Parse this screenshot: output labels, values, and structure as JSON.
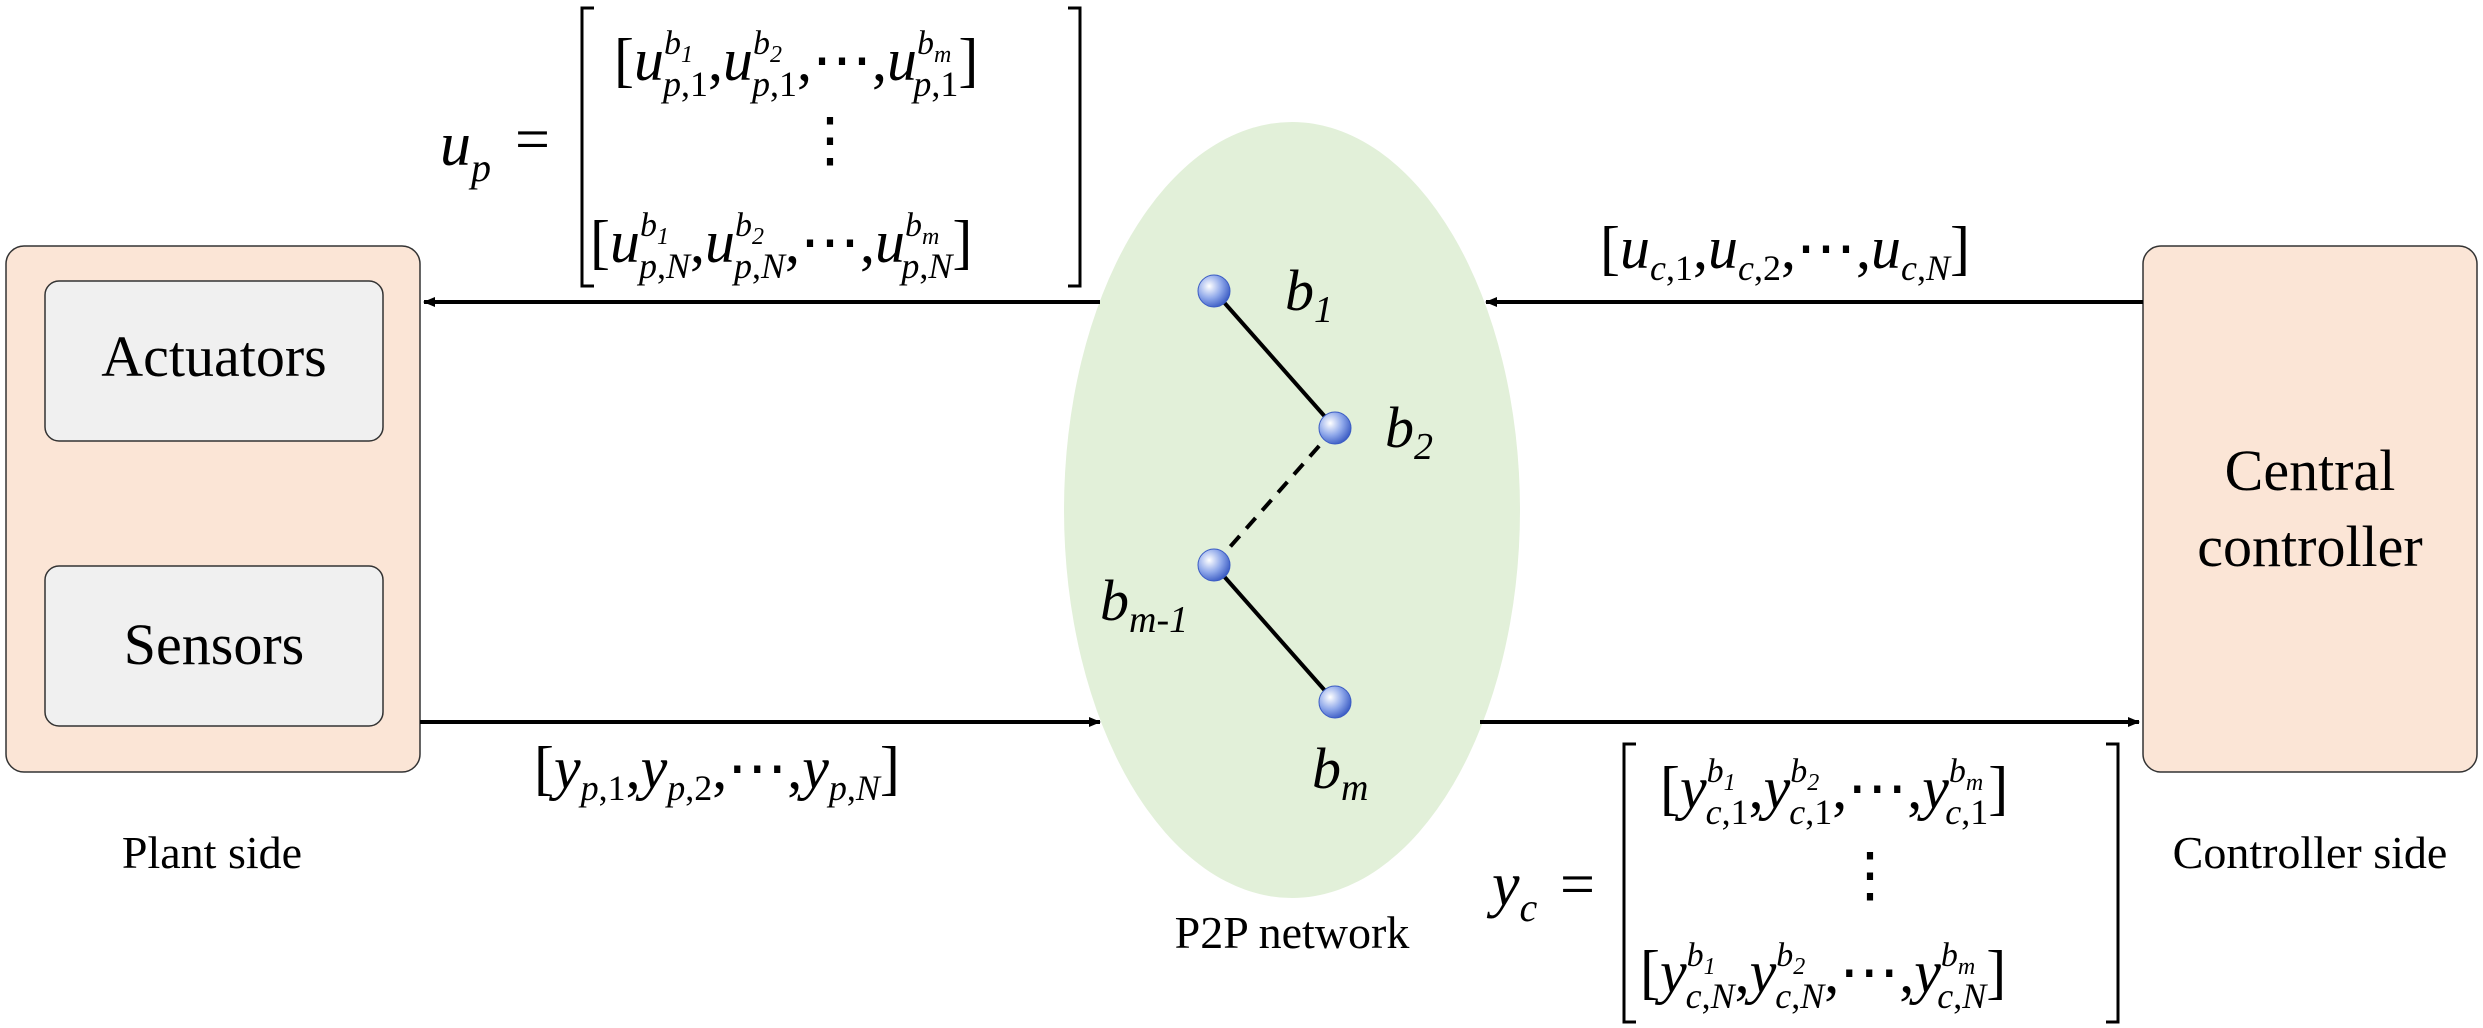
{
  "plant": {
    "actuators_label": "Actuators",
    "sensors_label": "Sensors",
    "side_label": "Plant side",
    "fill": "#fbe5d6",
    "inner_fill": "#f0f0f0"
  },
  "controller": {
    "label_line1": "Central",
    "label_line2": "controller",
    "side_label": "Controller side",
    "fill": "#fbe5d6"
  },
  "network": {
    "label": "P2P network",
    "fill": "#e2f0d9",
    "node_color": "#6f8fe0",
    "nodes": [
      {
        "id": "b1",
        "base": "b",
        "sub": "1"
      },
      {
        "id": "b2",
        "base": "b",
        "sub": "2"
      },
      {
        "id": "bm1",
        "base": "b",
        "sub": "m-1"
      },
      {
        "id": "bm",
        "base": "b",
        "sub": "m"
      }
    ]
  },
  "signals": {
    "up": {
      "name_base": "u",
      "name_sub": "p",
      "equals": "=",
      "row_first": {
        "base": "u",
        "sub_row": "1",
        "sups": [
          "b1",
          "b2",
          "bm"
        ]
      },
      "ellipsis": "⋮",
      "row_last": {
        "base": "u",
        "sub_row": "N",
        "sups": [
          "b1",
          "b2",
          "bm"
        ]
      },
      "sub_prefix": "p"
    },
    "uc": {
      "base": "u",
      "sub_prefix": "c",
      "subs": [
        "1",
        "2",
        "N"
      ],
      "dots": "⋯"
    },
    "yp": {
      "base": "y",
      "sub_prefix": "p",
      "subs": [
        "1",
        "2",
        "N"
      ],
      "dots": "⋯"
    },
    "yc": {
      "name_base": "y",
      "name_sub": "c",
      "equals": "=",
      "row_first": {
        "base": "y",
        "sub_row": "1",
        "sups": [
          "b1",
          "b2",
          "bm"
        ]
      },
      "ellipsis": "⋮",
      "row_last": {
        "base": "y",
        "sub_row": "N",
        "sups": [
          "b1",
          "b2",
          "bm"
        ]
      },
      "sub_prefix": "c"
    }
  }
}
